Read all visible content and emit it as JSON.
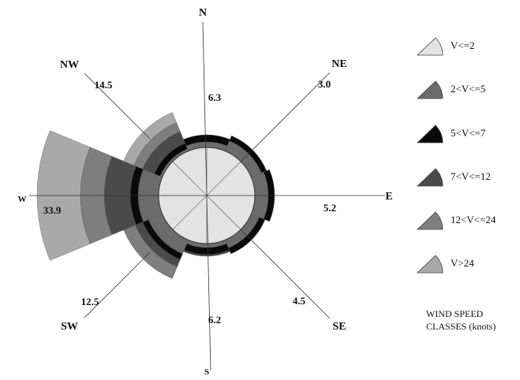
{
  "chart_data": {
    "type": "windrose",
    "title": "",
    "directions": [
      {
        "label": "N",
        "percent": "6.3"
      },
      {
        "label": "NE",
        "percent": "3.0"
      },
      {
        "label": "E",
        "percent": "5.2"
      },
      {
        "label": "SE",
        "percent": "4.5"
      },
      {
        "label": "S",
        "percent": "6.2"
      },
      {
        "label": "SW",
        "percent": "12.5"
      },
      {
        "label": "W",
        "percent": "33.9"
      },
      {
        "label": "NW",
        "percent": "14.5"
      }
    ],
    "speed_classes": [
      {
        "label": "V<=2",
        "color": "#e3e3e3"
      },
      {
        "label": "2<V<=5",
        "color": "#6b6b6b"
      },
      {
        "label": "5<V<=7",
        "color": "#0a0a0a"
      },
      {
        "label": "7<V<=12",
        "color": "#4a4a4a"
      },
      {
        "label": "12<V<=24",
        "color": "#7e7e7e"
      },
      {
        "label": "V>24",
        "color": "#a9a9a9"
      }
    ],
    "legend_title": [
      "WIND SPEED",
      "CLASSES (knots)"
    ],
    "legend_position": "right"
  }
}
